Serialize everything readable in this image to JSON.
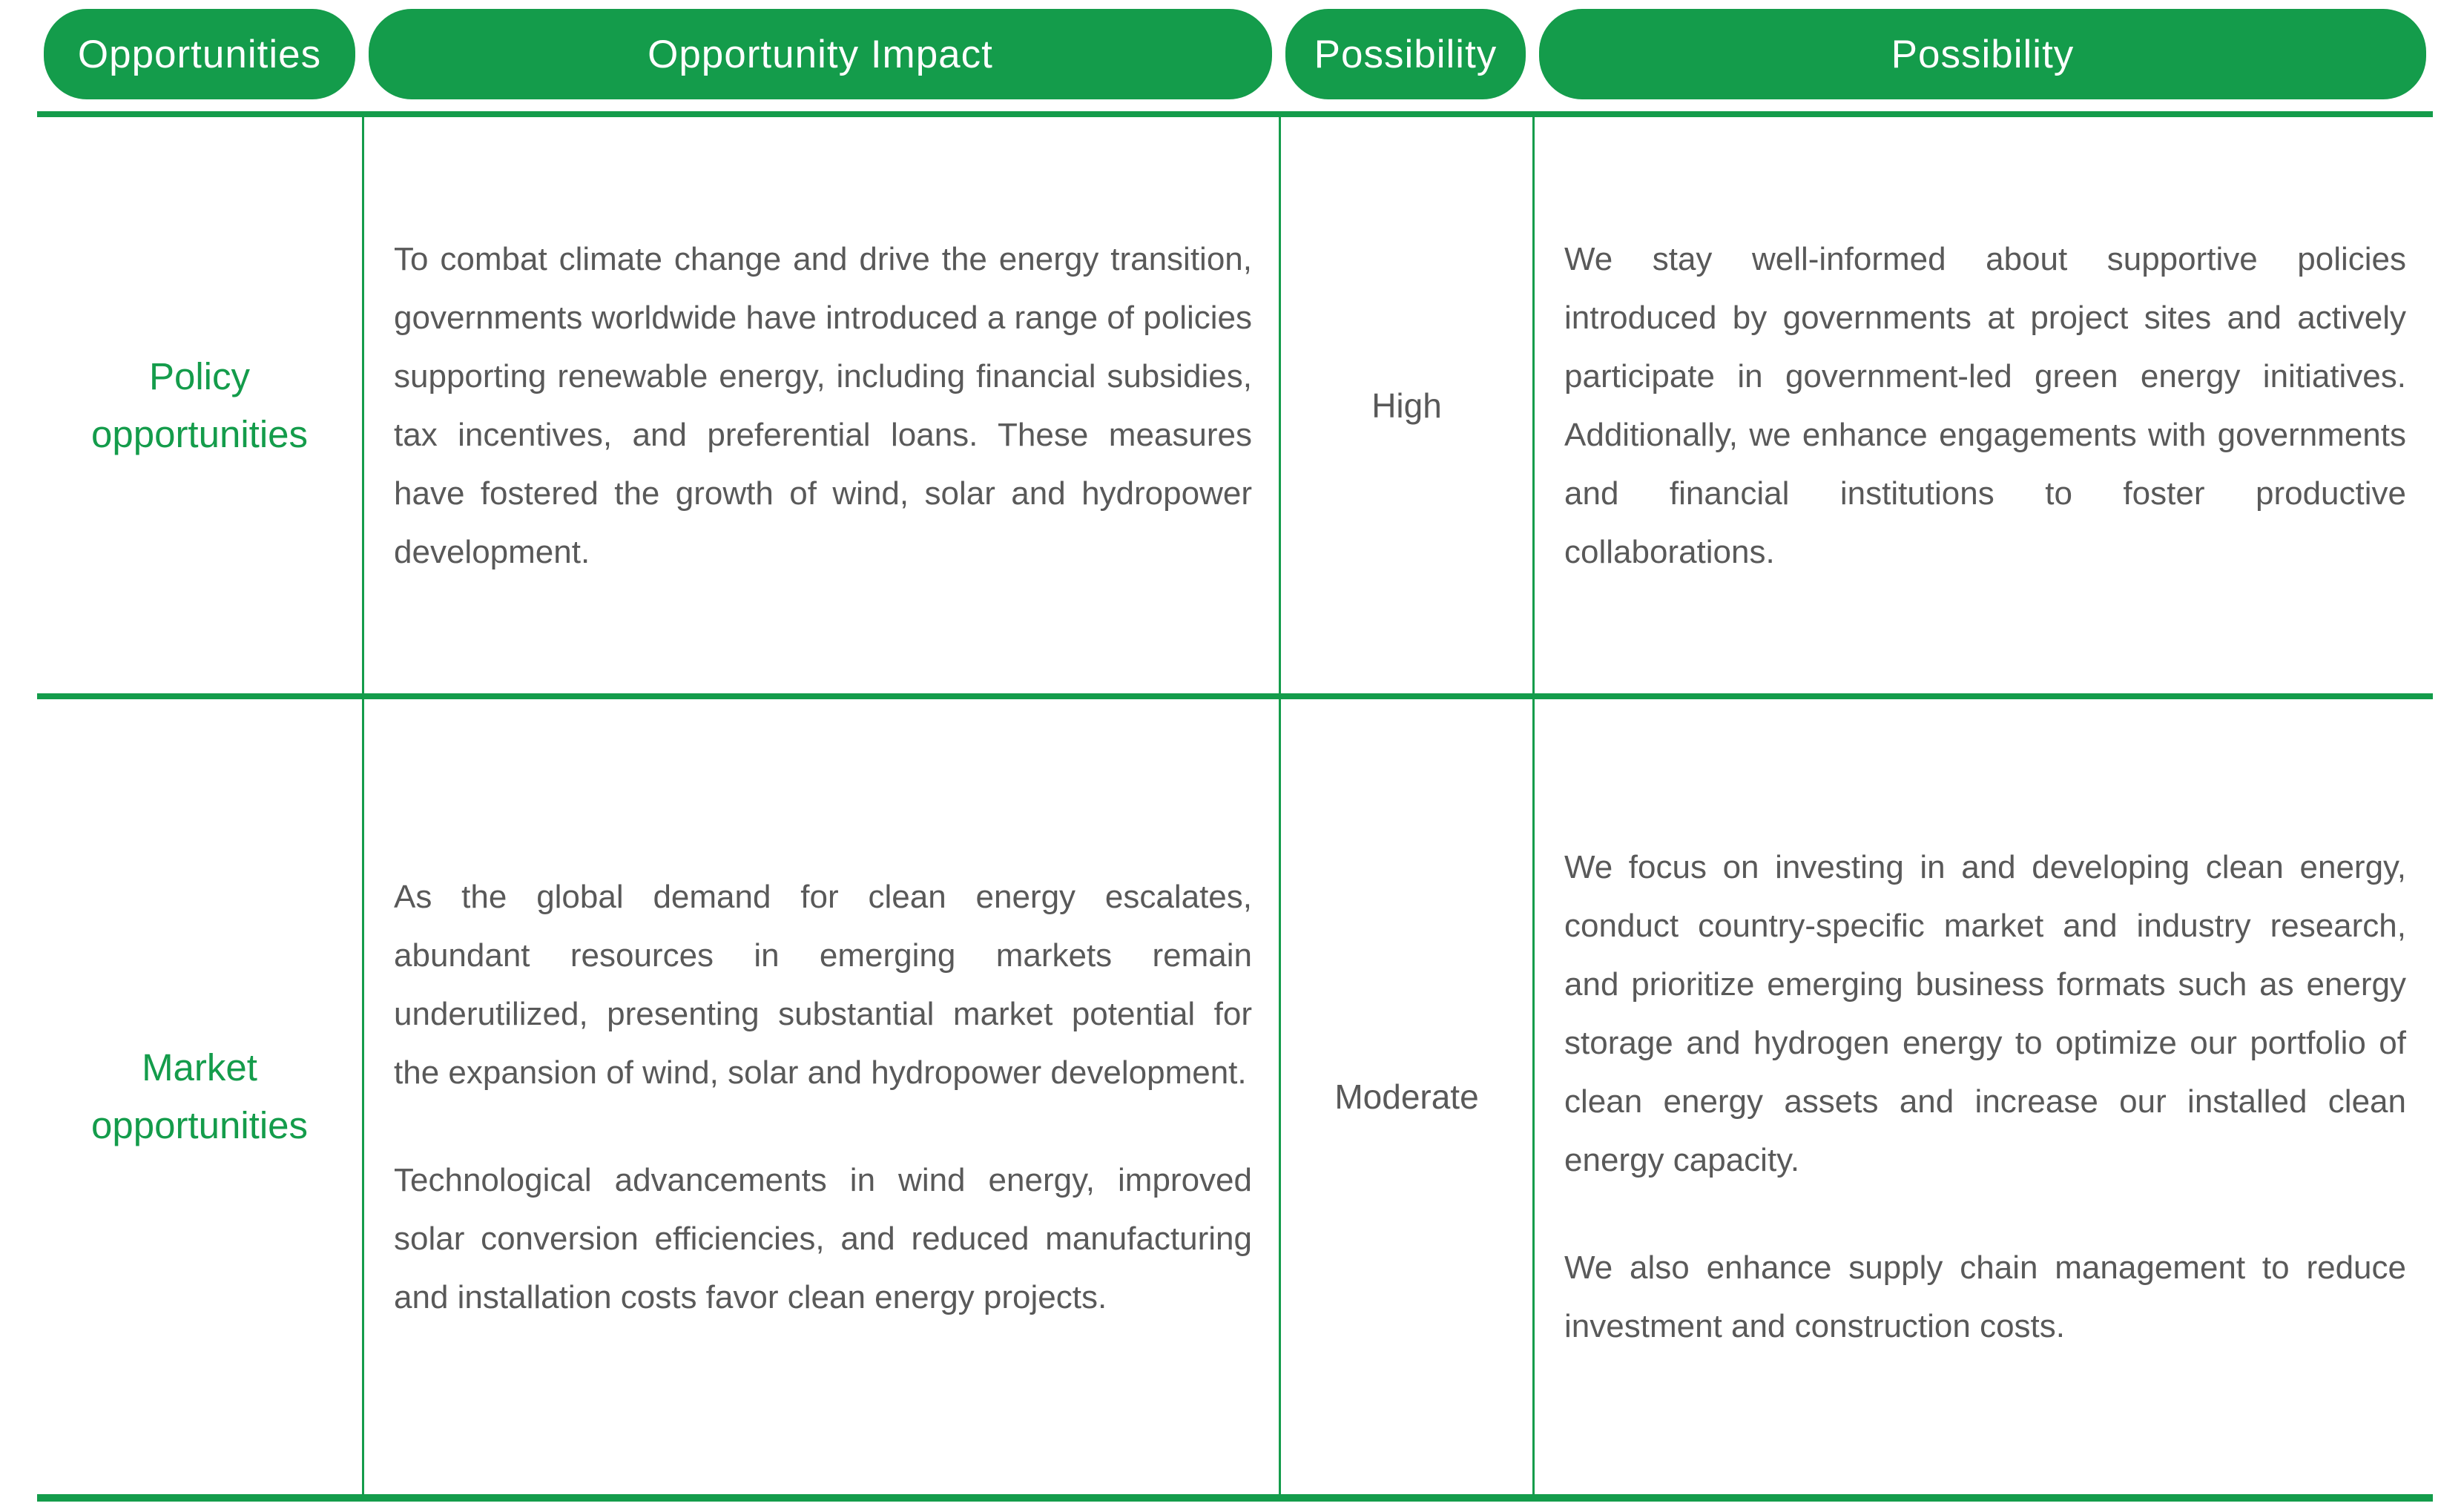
{
  "table": {
    "headers": [
      {
        "label": "Opportunities"
      },
      {
        "label": "Opportunity Impact"
      },
      {
        "label": "Possibility"
      },
      {
        "label": "Possibility"
      }
    ],
    "rows": [
      {
        "opportunity": "Policy opportunities",
        "impact_paragraphs": [
          "To combat climate change and drive the energy transition, governments worldwide have introduced a range of policies supporting renewable energy, including financial subsidies, tax incentives, and preferential loans. These measures have fostered the growth of wind, solar and hydropower development."
        ],
        "possibility": "High",
        "response_paragraphs": [
          "We stay well-informed about supportive policies introduced by governments at project sites and actively participate in government-led green energy initiatives. Additionally, we enhance engagements with governments and financial institutions to foster productive collaborations."
        ]
      },
      {
        "opportunity": "Market opportunities",
        "impact_paragraphs": [
          "As the global demand for clean energy escalates, abundant resources in emerging markets remain underutilized, presenting substantial market potential for the expansion of wind, solar and hydropower development.",
          "Technological advancements in wind energy, improved solar conversion efficiencies, and reduced manufacturing and installation costs favor clean energy projects."
        ],
        "possibility": "Moderate",
        "response_paragraphs": [
          "We focus on investing in and developing clean energy, conduct country-specific market and industry research, and prioritize emerging business formats such as energy storage and hydrogen energy to  optimize our portfolio of clean energy assets and increase our installed clean energy capacity.",
          "We also enhance supply chain management to reduce investment and construction costs."
        ]
      }
    ],
    "colors": {
      "accent_green": "#149C4B",
      "body_text_gray": "#595959"
    }
  }
}
